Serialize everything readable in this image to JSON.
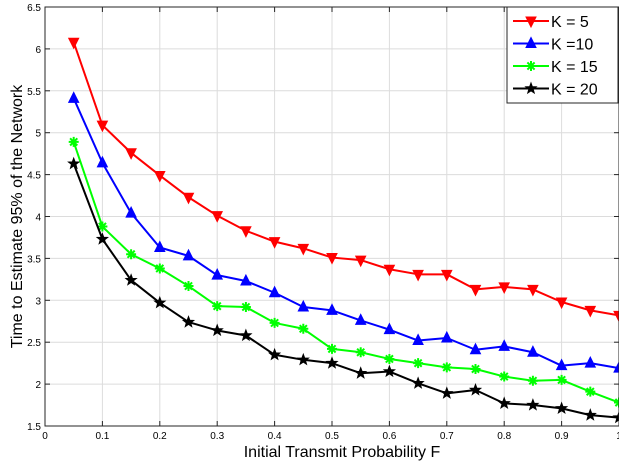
{
  "chart_data": {
    "type": "line",
    "title": "",
    "xlabel": "Initial Transmit Probability F",
    "ylabel": "Time to Estimate 95% of the Network",
    "xlim": [
      0,
      1
    ],
    "ylim": [
      1.5,
      6.5
    ],
    "x_ticks": [
      "0",
      "0.1",
      "0.2",
      "0.3",
      "0.4",
      "0.5",
      "0.6",
      "0.7",
      "0.8",
      "0.9",
      "1"
    ],
    "y_ticks": [
      "1.5",
      "2",
      "2.5",
      "3",
      "3.5",
      "4",
      "4.5",
      "5",
      "5.5",
      "6",
      "6.5"
    ],
    "grid": true,
    "legend_position": "top-right",
    "x": [
      0.05,
      0.1,
      0.15,
      0.2,
      0.25,
      0.3,
      0.35,
      0.4,
      0.45,
      0.5,
      0.55,
      0.6,
      0.65,
      0.7,
      0.75,
      0.8,
      0.85,
      0.9,
      0.95,
      1.0
    ],
    "series": [
      {
        "name": "K = 5",
        "color": "#ff0000",
        "marker": "triangle-down",
        "values": [
          6.08,
          5.09,
          4.76,
          4.49,
          4.23,
          4.01,
          3.83,
          3.7,
          3.62,
          3.51,
          3.48,
          3.37,
          3.31,
          3.31,
          3.13,
          3.16,
          3.13,
          2.98,
          2.88,
          2.82
        ]
      },
      {
        "name": "K =10",
        "color": "#0000ff",
        "marker": "triangle-up",
        "values": [
          5.41,
          4.64,
          4.04,
          3.63,
          3.53,
          3.3,
          3.23,
          3.09,
          2.92,
          2.88,
          2.76,
          2.65,
          2.52,
          2.55,
          2.41,
          2.45,
          2.38,
          2.22,
          2.25,
          2.19
        ]
      },
      {
        "name": "K = 15",
        "color": "#00ff00",
        "marker": "asterisk",
        "values": [
          4.89,
          3.88,
          3.55,
          3.38,
          3.17,
          2.93,
          2.92,
          2.73,
          2.66,
          2.42,
          2.38,
          2.3,
          2.25,
          2.2,
          2.18,
          2.09,
          2.04,
          2.05,
          1.91,
          1.78
        ]
      },
      {
        "name": "K = 20",
        "color": "#000000",
        "marker": "pentagram",
        "values": [
          4.63,
          3.73,
          3.24,
          2.97,
          2.74,
          2.64,
          2.58,
          2.35,
          2.29,
          2.25,
          2.13,
          2.15,
          2.01,
          1.89,
          1.93,
          1.77,
          1.75,
          1.71,
          1.63,
          1.6
        ]
      }
    ]
  }
}
